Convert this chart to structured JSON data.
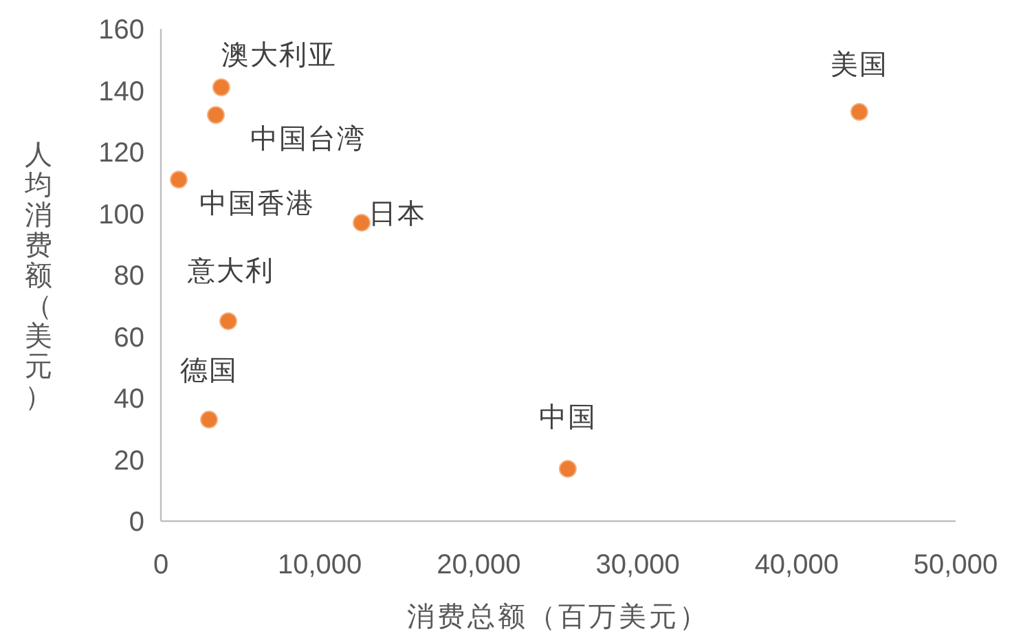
{
  "chart_data": {
    "type": "scatter",
    "xlabel": "消费总额（百万美元）",
    "ylabel": "人均消费额（美元）",
    "x": [
      3800,
      3460,
      1125,
      12630,
      4240,
      3030,
      25600,
      43940
    ],
    "values": [
      141,
      132,
      111,
      97,
      65,
      33,
      17,
      133
    ],
    "color": "#ed7d31",
    "marker": "circle",
    "grid": false,
    "xlim": [
      0,
      50000
    ],
    "xticks": [
      {
        "value": 0,
        "label": "0"
      },
      {
        "value": 10000,
        "label": "10,000"
      },
      {
        "value": 20000,
        "label": "20,000"
      },
      {
        "value": 30000,
        "label": "30,000"
      },
      {
        "value": 40000,
        "label": "40,000"
      },
      {
        "value": 50000,
        "label": "50,000"
      }
    ],
    "ylim": [
      0,
      160
    ],
    "yticks": [
      0,
      20,
      40,
      60,
      80,
      100,
      120,
      140,
      160
    ],
    "annotations": [
      {
        "text": "澳大利亚",
        "x": 3800,
        "y": 141
      },
      {
        "text": "中国台湾",
        "x": 3460,
        "y": 132
      },
      {
        "text": "中国香港",
        "x": 1125,
        "y": 111
      },
      {
        "text": "日本",
        "x": 12630,
        "y": 97
      },
      {
        "text": "意大利",
        "x": 4240,
        "y": 65
      },
      {
        "text": "德国",
        "x": 3030,
        "y": 33
      },
      {
        "text": "中国",
        "x": 25600,
        "y": 17
      },
      {
        "text": "美国",
        "x": 43940,
        "y": 133
      }
    ]
  }
}
